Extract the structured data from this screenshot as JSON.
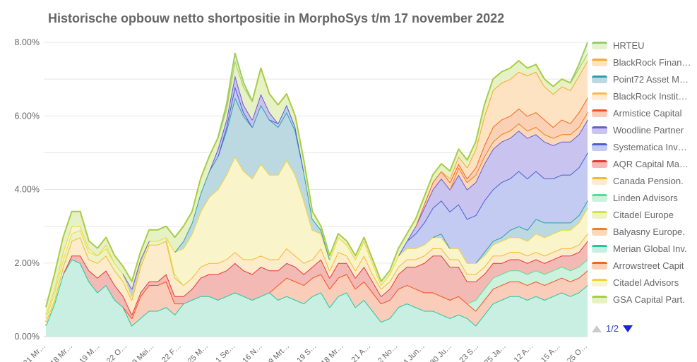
{
  "title": "Historische opbouw netto shortpositie in MorphoSys t/m 17 november 2022",
  "legend": {
    "pagination": {
      "label": "1/2"
    },
    "items_order": [
      "HRTEU",
      "BlackRock Finan…",
      "Point72 Asset M…",
      "BlackRock Instit…",
      "Armistice Capital",
      "Woodline Partner",
      "Systematica Inv…",
      "AQR Capital Ma…",
      "Canada Pension.",
      "Linden Advisors",
      "Citadel Europe",
      "Balyasny Europe.",
      "Merian Global Inv.",
      "Arrowstreet Capit",
      "Citadel Advisors",
      "GSA Capital Part."
    ]
  },
  "chart_data": {
    "type": "area",
    "stacked": true,
    "title": "Historische opbouw netto shortpositie in MorphoSys t/m 17 november 2022",
    "ylabel": "",
    "xlabel": "",
    "ylim": [
      0,
      8
    ],
    "y_tick_labels": [
      "0.00%",
      "2.00%",
      "4.00%",
      "6.00%",
      "8.00%"
    ],
    "grid": true,
    "legend_position": "right",
    "x_tick_labels": [
      "21 Mr…",
      "18 Mr…",
      "19 M…",
      "22 O…",
      "9 Mei…",
      "22 F…",
      "25 M…",
      "1 Se…",
      "16 N…",
      "9 Mrt…",
      "19 S…",
      "18 Mr…",
      "21 A…",
      "2 No…",
      "4 Jun…",
      "30 Ju…",
      "23 S…",
      "25 Ja…",
      "12 A…",
      "15 A…",
      "25 O…"
    ],
    "stack_order": [
      "Merian Global Inv.",
      "Armistice Capital",
      "Linden Advisors",
      "AQR Capital Ma…",
      "Canada Pension.",
      "Citadel Europe",
      "Citadel Advisors",
      "Point72 Asset M…",
      "Systematica Inv…",
      "Woodline Partner",
      "Balyasny Europe.",
      "Arrowstreet Capit",
      "BlackRock Finan…",
      "BlackRock Instit…",
      "GSA Capital Part.",
      "HRTEU"
    ],
    "series": [
      {
        "name": "HRTEU",
        "line_color": "#9ccc65",
        "fill_color": "#e3f2d1",
        "values": [
          0,
          0,
          0,
          0,
          0,
          0,
          0,
          0,
          0,
          0,
          0,
          0,
          0,
          0,
          0,
          0,
          0,
          0,
          0,
          0,
          0,
          0.1,
          0.2,
          0.1,
          0,
          0,
          0,
          0,
          0,
          0,
          0,
          0,
          0,
          0,
          0,
          0,
          0,
          0,
          0,
          0,
          0,
          0,
          0,
          0,
          0,
          0,
          0,
          0,
          0,
          0,
          0,
          0,
          0,
          0,
          0,
          0,
          0,
          0,
          0,
          0,
          0,
          0,
          0.1,
          0.3
        ]
      },
      {
        "name": "BlackRock Finan…",
        "line_color": "#ffa726",
        "fill_color": "#fde3c2",
        "values": [
          0,
          0,
          0,
          0,
          0,
          0,
          0,
          0,
          0,
          0,
          0,
          0,
          0,
          0,
          0,
          0,
          0,
          0,
          0,
          0,
          0,
          0,
          0,
          0,
          0,
          0,
          0,
          0,
          0,
          0,
          0,
          0,
          0,
          0,
          0,
          0,
          0,
          0,
          0,
          0,
          0,
          0,
          0,
          0,
          0,
          0,
          0,
          0.1,
          0.2,
          0.3,
          0.5,
          0.8,
          1.0,
          1.0,
          1.0,
          1.0,
          1.1,
          1.1,
          0.9,
          0.9,
          0.9,
          0.9,
          1.0,
          1.0
        ]
      },
      {
        "name": "Point72 Asset M…",
        "line_color": "#2d9fa8",
        "fill_color": "#bcd9e2",
        "values": [
          0,
          0,
          0,
          0,
          0,
          0,
          0,
          0,
          0,
          0,
          0,
          0,
          0,
          0,
          0,
          0,
          0.2,
          0.3,
          0.5,
          0.7,
          0.9,
          1.2,
          1.6,
          1.5,
          1.4,
          1.6,
          1.5,
          1.3,
          1.3,
          1.2,
          0.8,
          0.3,
          0.1,
          0,
          0,
          0,
          0,
          0,
          0,
          0,
          0,
          0,
          0,
          0,
          0,
          0,
          0.1,
          0,
          0,
          0,
          0,
          0.1,
          0.1,
          0.1,
          0.2,
          0.3,
          0.3,
          0.4,
          0.4,
          0.3,
          0.2,
          0.2,
          0.2,
          0.2
        ]
      },
      {
        "name": "BlackRock Instit…",
        "line_color": "#ffb74d",
        "fill_color": "#fdebd2",
        "values": [
          0,
          0,
          0,
          0,
          0,
          0,
          0,
          0,
          0,
          0,
          0,
          0,
          0,
          0,
          0,
          0,
          0,
          0,
          0,
          0,
          0,
          0,
          0,
          0,
          0,
          0,
          0,
          0,
          0,
          0,
          0,
          0,
          0,
          0,
          0,
          0,
          0,
          0,
          0,
          0,
          0,
          0,
          0,
          0,
          0,
          0,
          0,
          0,
          0,
          0,
          0,
          0,
          0,
          0,
          0,
          0,
          0,
          0,
          0,
          0,
          0,
          0,
          0,
          0
        ]
      },
      {
        "name": "Armistice Capital",
        "line_color": "#f4511e",
        "fill_color": "#f9cdb9",
        "values": [
          0,
          0,
          0,
          0,
          0,
          0,
          0,
          0,
          0,
          0,
          0.2,
          0.6,
          0.7,
          0.7,
          0.7,
          0.3,
          0,
          0,
          0,
          0,
          0,
          0,
          0,
          0,
          0,
          0,
          0,
          0.4,
          0.5,
          0.5,
          0.5,
          0.5,
          0.5,
          0.5,
          0.5,
          0.5,
          0.5,
          0.5,
          0.5,
          0.5,
          0.5,
          0.5,
          0.5,
          0.5,
          0.5,
          0.5,
          0.5,
          0.5,
          0.5,
          0.4,
          0.4,
          0.4,
          0.4,
          0.4,
          0.4,
          0.4,
          0.4,
          0.4,
          0.4,
          0.4,
          0.4,
          0.4,
          0.4,
          0.4
        ]
      },
      {
        "name": "Woodline Partner",
        "line_color": "#6a5ad4",
        "fill_color": "#c9c3ef",
        "values": [
          0,
          0,
          0,
          0,
          0,
          0,
          0,
          0,
          0,
          0,
          0.2,
          0.1,
          0,
          0,
          0,
          0,
          0,
          0,
          0,
          0,
          0.2,
          0.2,
          0.3,
          0.2,
          0.2,
          0.3,
          0.2,
          0,
          0,
          0,
          0,
          0,
          0,
          0,
          0,
          0,
          0,
          0,
          0,
          0,
          0,
          0,
          0,
          0.2,
          0.4,
          0.5,
          0.6,
          0.6,
          0.8,
          0.8,
          0.9,
          1.0,
          1.1,
          1.1,
          1.1,
          1.1,
          1.1,
          1.0,
          1.0,
          0.9,
          0.9,
          0.9,
          0.9,
          0.9
        ]
      },
      {
        "name": "Systematica Inv…",
        "line_color": "#4a5fd0",
        "fill_color": "#c3cbf2",
        "values": [
          0,
          0,
          0,
          0,
          0,
          0,
          0,
          0,
          0,
          0,
          0,
          0,
          0,
          0,
          0,
          0,
          0,
          0,
          0,
          0,
          0,
          0.1,
          0.3,
          0.1,
          0,
          0,
          0,
          0.1,
          0.2,
          0.1,
          0,
          0,
          0,
          0,
          0,
          0,
          0,
          0,
          0,
          0,
          0,
          0,
          0.2,
          0.4,
          0.6,
          0.8,
          0.9,
          1.0,
          1.2,
          1.2,
          1.3,
          1.4,
          1.4,
          1.5,
          1.4,
          1.5,
          1.4,
          1.3,
          1.2,
          1.2,
          1.3,
          1.3,
          1.3,
          1.3
        ]
      },
      {
        "name": "AQR Capital Ma…",
        "line_color": "#e53935",
        "fill_color": "#f3b9b5",
        "values": [
          0,
          0,
          0,
          0.1,
          0.2,
          0.3,
          0.4,
          0.4,
          0.4,
          0.3,
          0.1,
          0.1,
          0.1,
          0.1,
          0.2,
          0.2,
          0.2,
          0.3,
          0.5,
          0.6,
          0.7,
          0.7,
          0.8,
          0.7,
          0.7,
          0.8,
          0.6,
          0.4,
          0.4,
          0.4,
          0.3,
          0.3,
          0.4,
          0.3,
          0.4,
          0.3,
          0.3,
          0.4,
          0.3,
          0.2,
          0.3,
          0.4,
          0.5,
          0.6,
          0.8,
          1.0,
          1.1,
          0.9,
          0.8,
          0.6,
          0.5,
          0.4,
          0.4,
          0.3,
          0.3,
          0.3,
          0.3,
          0.3,
          0.3,
          0.3,
          0.3,
          0.4,
          0.4,
          0.5
        ]
      },
      {
        "name": "Canada Pension.",
        "line_color": "#f5b82e",
        "fill_color": "#fdeccb",
        "values": [
          0.1,
          0.1,
          0.2,
          0.4,
          0.5,
          0.3,
          0.4,
          0.4,
          0.4,
          0.4,
          0.4,
          0.7,
          1.0,
          1.0,
          0.9,
          0.5,
          0.3,
          0.3,
          0.3,
          0.3,
          0.3,
          0.3,
          0.3,
          0.3,
          0.4,
          0.3,
          0.3,
          0.3,
          0.4,
          0.3,
          0.3,
          0.2,
          0.3,
          0.2,
          0.3,
          0.2,
          0.2,
          0.3,
          0.2,
          0.2,
          0.2,
          0.2,
          0.2,
          0.2,
          0.2,
          0.2,
          0.2,
          0.2,
          0.2,
          0.2,
          0.2,
          0.2,
          0.2,
          0.2,
          0.2,
          0.2,
          0.2,
          0.2,
          0.2,
          0.2,
          0.2,
          0.2,
          0.2,
          0.2
        ]
      },
      {
        "name": "Linden Advisors",
        "line_color": "#52e095",
        "fill_color": "#ccf2de",
        "values": [
          0,
          0,
          0,
          0,
          0,
          0,
          0,
          0,
          0,
          0,
          0,
          0,
          0,
          0,
          0,
          0,
          0,
          0,
          0,
          0,
          0,
          0,
          0,
          0,
          0,
          0,
          0,
          0,
          0,
          0,
          0,
          0,
          0,
          0,
          0,
          0,
          0,
          0,
          0,
          0,
          0,
          0,
          0,
          0,
          0,
          0,
          0,
          0,
          0,
          0,
          0.3,
          0.3,
          0.3,
          0.3,
          0.3,
          0.3,
          0.3,
          0.3,
          0.3,
          0.3,
          0.3,
          0.3,
          0.3,
          0.3
        ]
      },
      {
        "name": "Citadel Europe",
        "line_color": "#d9e04e",
        "fill_color": "#eef3c6",
        "values": [
          0.1,
          0.2,
          0.2,
          0.2,
          0.2,
          0.2,
          0.2,
          0.2,
          0.2,
          0.2,
          0.1,
          0.1,
          0.1,
          0.1,
          0.1,
          0.1,
          0,
          0,
          0,
          0,
          0,
          0,
          0,
          0,
          0,
          0,
          0,
          0,
          0,
          0,
          0,
          0,
          0,
          0,
          0,
          0,
          0,
          0,
          0,
          0,
          0,
          0,
          0,
          0,
          0,
          0,
          0,
          0,
          0,
          0,
          0,
          0,
          0,
          0,
          0,
          0,
          0,
          0,
          0,
          0,
          0,
          0,
          0,
          0
        ]
      },
      {
        "name": "Balyasny Europe.",
        "line_color": "#f57c1f",
        "fill_color": "#fbd8ba",
        "values": [
          0,
          0,
          0,
          0,
          0,
          0,
          0,
          0,
          0,
          0,
          0,
          0,
          0,
          0,
          0,
          0,
          0,
          0,
          0,
          0,
          0,
          0,
          0,
          0,
          0,
          0,
          0,
          0,
          0,
          0,
          0,
          0,
          0,
          0,
          0,
          0,
          0,
          0,
          0,
          0,
          0,
          0,
          0,
          0,
          0,
          0,
          0,
          0,
          0.2,
          0.2,
          0.2,
          0.2,
          0.2,
          0.2,
          0.2,
          0.2,
          0.2,
          0.2,
          0.2,
          0.2,
          0.2,
          0.2,
          0.2,
          0.2
        ]
      },
      {
        "name": "Merian Global Inv.",
        "line_color": "#1fc8a0",
        "fill_color": "#c9efe2",
        "values": [
          0.3,
          0.9,
          1.7,
          2.1,
          2.0,
          1.5,
          1.2,
          1.4,
          1.0,
          0.8,
          0.3,
          0.5,
          0.7,
          0.7,
          0.8,
          0.6,
          0.9,
          1.0,
          1.1,
          1.1,
          1.0,
          1.1,
          1.2,
          1.1,
          1.0,
          1.1,
          1.2,
          1.0,
          1.1,
          1.0,
          0.9,
          1.1,
          1.2,
          0.8,
          1.1,
          1.2,
          0.8,
          1.0,
          0.7,
          0.4,
          0.5,
          0.8,
          0.9,
          0.8,
          0.7,
          0.7,
          0.6,
          0.5,
          0.6,
          0.5,
          0.3,
          0.6,
          0.9,
          1.0,
          1.1,
          1.1,
          1.0,
          1.1,
          1.0,
          1.1,
          1.2,
          1.1,
          1.2,
          1.4
        ]
      },
      {
        "name": "Arrowstreet Capit",
        "line_color": "#f4651f",
        "fill_color": "#fbd1b5",
        "values": [
          0,
          0,
          0,
          0,
          0,
          0,
          0,
          0,
          0,
          0,
          0,
          0,
          0,
          0,
          0,
          0,
          0,
          0,
          0,
          0,
          0,
          0,
          0,
          0,
          0,
          0,
          0,
          0,
          0,
          0,
          0,
          0,
          0,
          0,
          0,
          0,
          0,
          0,
          0,
          0,
          0,
          0,
          0,
          0,
          0.1,
          0.2,
          0.2,
          0.2,
          0.1,
          0.1,
          0.2,
          0.3,
          0.4,
          0.4,
          0.4,
          0.4,
          0.4,
          0.4,
          0.4,
          0.3,
          0.4,
          0.3,
          0.4,
          0.4
        ]
      },
      {
        "name": "Citadel Advisors",
        "line_color": "#f0d434",
        "fill_color": "#faf4cb",
        "values": [
          0.1,
          0.1,
          0.2,
          0.2,
          0.1,
          0.1,
          0,
          0.1,
          0,
          0,
          0,
          0,
          0,
          0,
          0,
          0.6,
          1.0,
          1.2,
          1.5,
          1.8,
          2.0,
          2.3,
          2.6,
          2.4,
          2.2,
          2.5,
          2.3,
          2.3,
          2.4,
          2.2,
          1.7,
          0.8,
          0.4,
          0.3,
          0.4,
          0.3,
          0.3,
          0.4,
          0.3,
          0.1,
          0.2,
          0.3,
          0.3,
          0.3,
          0.3,
          0.3,
          0.3,
          0.3,
          0.3,
          0.3,
          0.3,
          0.3,
          0.3,
          0.4,
          0.4,
          0.4,
          0.4,
          0.5,
          0.5,
          0.5,
          0.5,
          0.5,
          0.6,
          0.7
        ]
      },
      {
        "name": "GSA Capital Part.",
        "line_color": "#aacc44",
        "fill_color": "#e6f2c5",
        "values": [
          0.2,
          0.4,
          0.4,
          0.4,
          0.4,
          0.2,
          0.2,
          0.2,
          0.2,
          0.2,
          0.2,
          0.2,
          0.3,
          0.3,
          0.3,
          0.4,
          0.4,
          0.3,
          0.4,
          0.4,
          0.3,
          0.3,
          0.4,
          0.5,
          0.5,
          0.7,
          0.5,
          0.5,
          0.3,
          0.3,
          0.3,
          0.2,
          0.1,
          0.1,
          0.1,
          0.1,
          0.1,
          0.1,
          0.1,
          0.1,
          0.1,
          0.2,
          0.2,
          0.2,
          0.2,
          0.2,
          0.2,
          0.2,
          0.2,
          0.2,
          0.2,
          0.3,
          0.3,
          0.3,
          0.3,
          0.3,
          0.2,
          0.2,
          0.2,
          0.2,
          0.2,
          0.2,
          0.2,
          0.2
        ]
      }
    ]
  },
  "colors": {
    "title_text": "#666666",
    "axis_label_text": "#666666",
    "grid_line": "#e6e6e6",
    "axis_line": "#ccd6eb",
    "legend_text": "#666666",
    "pager_active": "#1c24cd",
    "pager_disabled": "#cccccc"
  }
}
